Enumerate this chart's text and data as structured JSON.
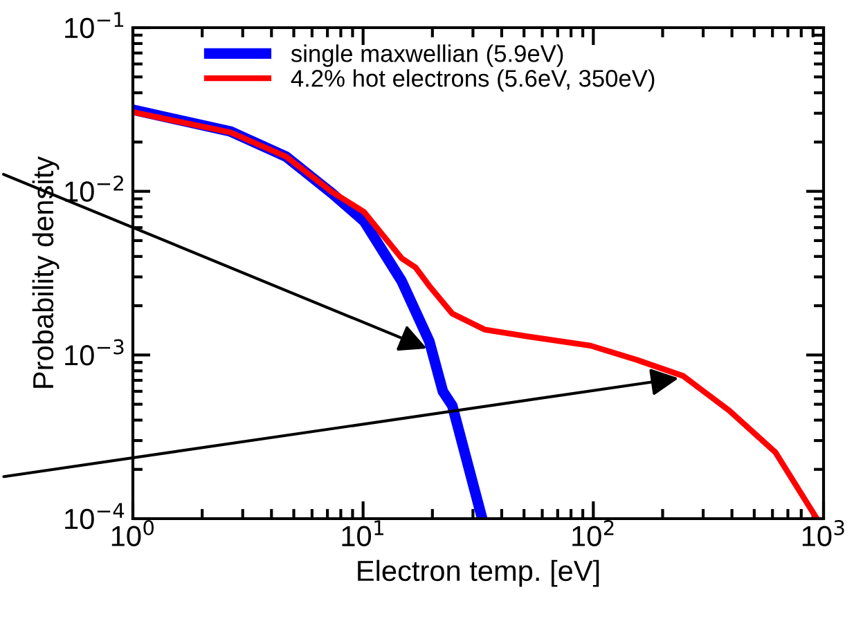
{
  "chart_data": {
    "type": "line",
    "xlabel": "Electron temp. [eV]",
    "ylabel": "Probability density",
    "log": "xy",
    "xlim": [
      1,
      1000
    ],
    "ylim": [
      0.0001,
      0.1
    ],
    "xticks": [
      {
        "value": 1,
        "label": "10$^{0}$"
      },
      {
        "value": 10,
        "label": "10$^{1}$"
      },
      {
        "value": 100,
        "label": "10$^{2}$"
      },
      {
        "value": 1000,
        "label": "10$^{3}$"
      }
    ],
    "yticks": [
      {
        "value": 0.0001,
        "label": "10$^{−4}$"
      },
      {
        "value": 0.001,
        "label": "10$^{−3}$"
      },
      {
        "value": 0.01,
        "label": "10$^{−2}$"
      },
      {
        "value": 0.1,
        "label": "10$^{−1}$"
      }
    ],
    "grid": false,
    "legend": "top",
    "marker": "none",
    "line_style": "solid",
    "series": [
      {
        "name": "single maxwellian (5.9eV)",
        "color": "#0000ff",
        "x": [
          1,
          2.66,
          4.63,
          7.34,
          10.1,
          14.7,
          19.4,
          22.2,
          24.4,
          32.9
        ],
        "values": [
          0.0315,
          0.0232,
          0.0163,
          0.0097,
          0.00656,
          0.00283,
          0.00121,
          0.0006,
          0.00049,
          0.0001
        ]
      },
      {
        "name": "4.2% hot electrons (5.6eV, 350eV)",
        "color": "#ff0000",
        "x": [
          1,
          2.66,
          4.63,
          7.34,
          10.1,
          14.7,
          16.9,
          19.4,
          24.4,
          33.7,
          53.4,
          97.3,
          154,
          245,
          389,
          617,
          935
        ],
        "values": [
          0.0305,
          0.0229,
          0.0163,
          0.0099,
          0.00747,
          0.0039,
          0.00343,
          0.00264,
          0.00179,
          0.00143,
          0.00129,
          0.00114,
          0.000935,
          0.000746,
          0.000458,
          0.000255,
          0.0001
        ]
      }
    ]
  }
}
